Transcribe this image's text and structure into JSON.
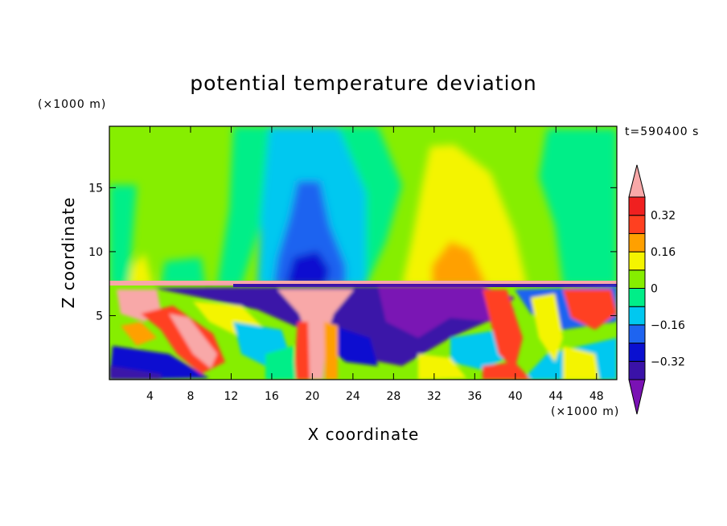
{
  "chart_data": {
    "type": "heatmap",
    "title": "potential temperature deviation",
    "xlabel": "X coordinate",
    "ylabel": "Z coordinate",
    "x_unit": "(×1000 m)",
    "y_unit": "(×1000 m)",
    "timestamp": "t=590400 s",
    "xlim": [
      0,
      50
    ],
    "ylim": [
      0,
      19.8
    ],
    "x_ticks": [
      4,
      8,
      12,
      16,
      20,
      24,
      28,
      32,
      36,
      40,
      44,
      48
    ],
    "y_ticks": [
      5,
      10,
      15
    ],
    "colorbar": {
      "levels": [
        -0.4,
        -0.32,
        -0.24,
        -0.16,
        -0.08,
        0,
        0.08,
        0.16,
        0.24,
        0.32,
        0.4
      ],
      "tick_values": [
        -0.32,
        -0.16,
        0,
        0.16,
        0.32
      ],
      "tick_labels": [
        "−0.32",
        "−0.16",
        "0",
        "0.16",
        "0.32"
      ],
      "colors": [
        "#7a12b4",
        "#3a12a8",
        "#0a10d0",
        "#1e64f0",
        "#00c8f0",
        "#00ee88",
        "#86ee00",
        "#f4f400",
        "#ffa000",
        "#ff4020",
        "#f02020",
        "#f8a8a8"
      ],
      "extend": "both"
    },
    "grid": false,
    "legend": "colorbar-right"
  }
}
